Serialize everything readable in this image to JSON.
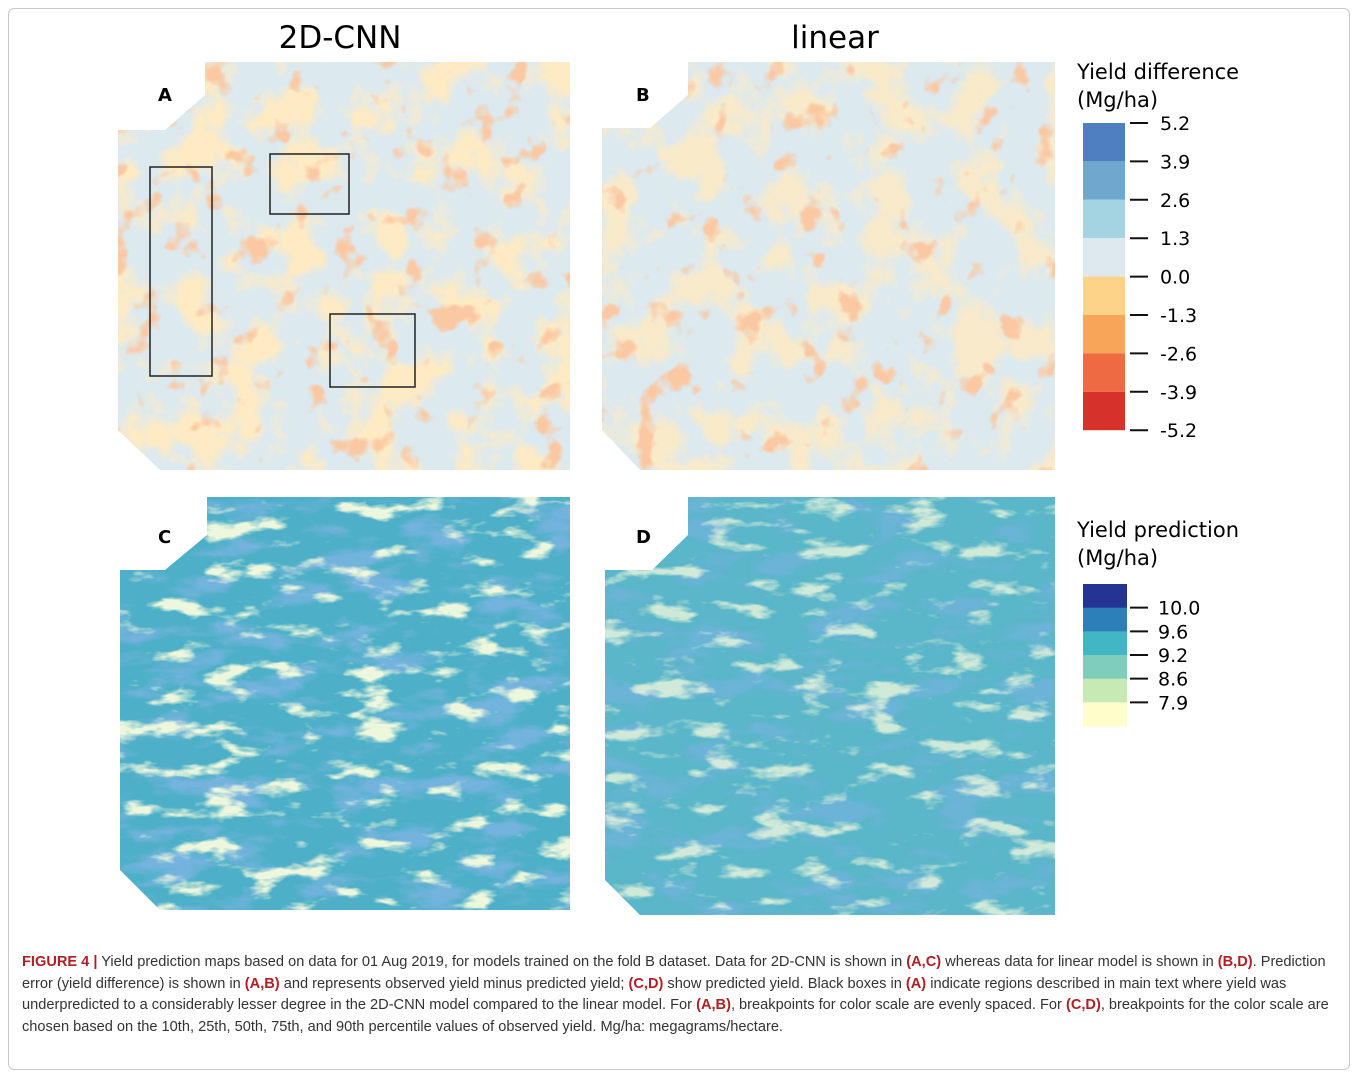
{
  "figure": {
    "column_titles": [
      "2D-CNN",
      "linear"
    ],
    "panel_labels": [
      "A",
      "B",
      "C",
      "D"
    ],
    "legends": [
      {
        "title": "Yield difference",
        "unit": "(Mg/ha)",
        "ticks": [
          "5.2",
          "3.9",
          "2.6",
          "1.3",
          "0.0",
          "-1.3",
          "-2.6",
          "-3.9",
          "-5.2"
        ],
        "colors": [
          "#4f7fc0",
          "#6fa8cf",
          "#a4d4e2",
          "#dde9ef",
          "#fdd38a",
          "#f8a55a",
          "#ee6a43",
          "#d7322a"
        ]
      },
      {
        "title": "Yield prediction",
        "unit": "(Mg/ha)",
        "ticks": [
          "10.0",
          "9.6",
          "9.2",
          "8.6",
          "7.9"
        ],
        "colors": [
          "#253494",
          "#2c7fb8",
          "#41b6c4",
          "#7fcdbb",
          "#c7e9b4",
          "#ffffcc"
        ]
      }
    ]
  },
  "caption": {
    "parts": [
      {
        "text": "FIGURE 4 |",
        "bold": true
      },
      {
        "text": " Yield prediction maps based on data for 01 Aug 2019, for models trained on the fold B dataset. Data for 2D-CNN is shown in ",
        "bold": false
      },
      {
        "text": "(A,C)",
        "bold": true
      },
      {
        "text": " whereas data for linear model is shown in ",
        "bold": false
      },
      {
        "text": "(B,D)",
        "bold": true
      },
      {
        "text": ". Prediction error (yield difference) is shown in ",
        "bold": false
      },
      {
        "text": "(A,B)",
        "bold": true
      },
      {
        "text": " and represents observed yield minus predicted yield; ",
        "bold": false
      },
      {
        "text": "(C,D)",
        "bold": true
      },
      {
        "text": " show predicted yield. Black boxes in ",
        "bold": false
      },
      {
        "text": "(A)",
        "bold": true
      },
      {
        "text": " indicate regions described in main text where yield was underpredicted to a considerably lesser degree in the 2D-CNN model compared to the linear model. For ",
        "bold": false
      },
      {
        "text": "(A,B)",
        "bold": true
      },
      {
        "text": ", breakpoints for color scale are evenly spaced. For ",
        "bold": false
      },
      {
        "text": "(C,D)",
        "bold": true
      },
      {
        "text": ", breakpoints for the color scale are chosen based on the 10th, 25th, 50th, 75th, and 90th percentile values of observed yield. Mg/ha: megagrams/hectare.",
        "bold": false
      }
    ]
  }
}
